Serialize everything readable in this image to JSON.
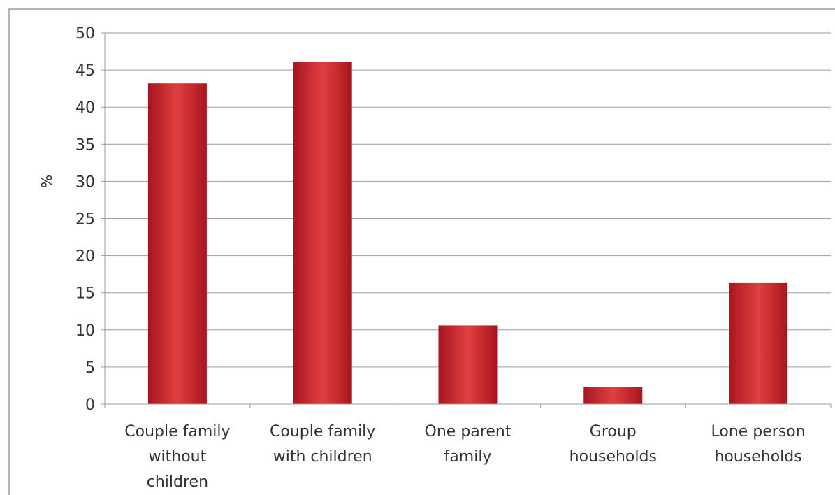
{
  "chart_data": {
    "type": "bar",
    "title": "",
    "xlabel": "",
    "ylabel": "%",
    "ylim": [
      0,
      50
    ],
    "yticks": [
      0,
      5,
      10,
      15,
      20,
      25,
      30,
      35,
      40,
      45,
      50
    ],
    "grid": true,
    "legend": "none",
    "categories": [
      [
        "Couple family",
        "without",
        "children"
      ],
      [
        "Couple family",
        "with children"
      ],
      [
        "One parent",
        "family"
      ],
      [
        "Group",
        "households"
      ],
      [
        "Lone person",
        "households"
      ]
    ],
    "values": [
      43.2,
      46.1,
      10.6,
      2.3,
      16.3
    ],
    "colors": {
      "bar": "#c8222b",
      "bar_light": "#e04040",
      "bar_dark": "#a8151e",
      "grid": "#9e9e9e",
      "axis": "#9e9e9e"
    }
  }
}
